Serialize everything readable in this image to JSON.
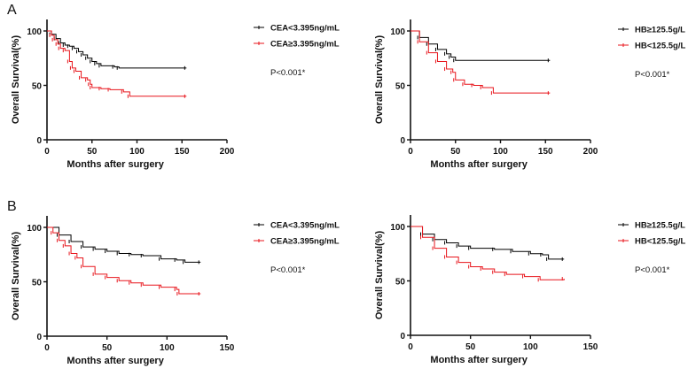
{
  "chart_data": [
    {
      "type": "line",
      "panel_label": "A",
      "xlabel": "Months after surgery",
      "ylabel": "Overall Survival(%)",
      "xlim": [
        0,
        200
      ],
      "ylim": [
        0,
        100
      ],
      "xticks": [
        "0",
        "50",
        "100",
        "150",
        "200"
      ],
      "yticks": [
        "0",
        "50",
        "100"
      ],
      "pvalue": "P<0.001*",
      "legend_position": "right",
      "series": [
        {
          "name": "CEA<3.395ng/mL",
          "color": "#000000",
          "x": [
            0,
            5,
            10,
            15,
            20,
            25,
            30,
            35,
            40,
            45,
            50,
            55,
            60,
            75,
            80,
            155
          ],
          "y": [
            100,
            97,
            93,
            89,
            87,
            86,
            84,
            81,
            78,
            75,
            72,
            70,
            68,
            67,
            66,
            66
          ]
        },
        {
          "name": "CEA≥3.395ng/mL",
          "color": "#e8141b",
          "x": [
            0,
            5,
            8,
            12,
            15,
            20,
            25,
            28,
            32,
            38,
            45,
            48,
            50,
            60,
            70,
            85,
            92,
            155
          ],
          "y": [
            100,
            96,
            92,
            88,
            84,
            82,
            72,
            66,
            63,
            57,
            55,
            51,
            48,
            47,
            46,
            44,
            40,
            40
          ]
        }
      ]
    },
    {
      "type": "line",
      "panel_label": "",
      "xlabel": "Months after surgery",
      "ylabel": "Overall Survival(%)",
      "xlim": [
        0,
        200
      ],
      "ylim": [
        0,
        100
      ],
      "xticks": [
        "0",
        "50",
        "100",
        "150",
        "200"
      ],
      "yticks": [
        "0",
        "50",
        "100"
      ],
      "pvalue": "P<0.001*",
      "legend_position": "right",
      "series": [
        {
          "name": "HB≥125.5g/L",
          "color": "#000000",
          "x": [
            0,
            10,
            20,
            30,
            40,
            45,
            50,
            155
          ],
          "y": [
            100,
            94,
            88,
            83,
            79,
            76,
            73,
            73
          ]
        },
        {
          "name": "HB<125.5g/L",
          "color": "#e8141b",
          "x": [
            0,
            10,
            20,
            30,
            40,
            47,
            50,
            60,
            70,
            80,
            92,
            155
          ],
          "y": [
            100,
            90,
            80,
            72,
            65,
            62,
            55,
            51,
            50,
            48,
            43,
            43
          ]
        }
      ]
    },
    {
      "type": "line",
      "panel_label": "B",
      "xlabel": "Months after surgery",
      "ylabel": "Overall Survival(%)",
      "xlim": [
        0,
        150
      ],
      "ylim": [
        0,
        100
      ],
      "xticks": [
        "0",
        "50",
        "100",
        "150"
      ],
      "yticks": [
        "0",
        "50",
        "100"
      ],
      "pvalue": "P<0.001*",
      "legend_position": "right",
      "series": [
        {
          "name": "CEA<3.395ng/mL",
          "color": "#000000",
          "x": [
            0,
            10,
            20,
            30,
            40,
            50,
            60,
            70,
            80,
            95,
            108,
            115,
            128
          ],
          "y": [
            100,
            93,
            87,
            82,
            80,
            78,
            76,
            75,
            74,
            71,
            70,
            68,
            68
          ]
        },
        {
          "name": "CEA≥3.395ng/mL",
          "color": "#e8141b",
          "x": [
            0,
            5,
            10,
            15,
            20,
            25,
            30,
            40,
            50,
            60,
            70,
            80,
            95,
            108,
            110,
            128
          ],
          "y": [
            100,
            95,
            88,
            83,
            76,
            72,
            64,
            57,
            54,
            51,
            49,
            47,
            45,
            43,
            39,
            39
          ]
        }
      ]
    },
    {
      "type": "line",
      "panel_label": "",
      "xlabel": "Months after surgery",
      "ylabel": "Overall Survival(%)",
      "xlim": [
        0,
        150
      ],
      "ylim": [
        0,
        100
      ],
      "xticks": [
        "0",
        "50",
        "100",
        "150"
      ],
      "yticks": [
        "0",
        "50",
        "100"
      ],
      "pvalue": "P<0.001*",
      "legend_position": "right",
      "series": [
        {
          "name": "HB≥125.5g/L",
          "color": "#000000",
          "x": [
            0,
            10,
            20,
            30,
            40,
            50,
            70,
            85,
            100,
            110,
            115,
            128
          ],
          "y": [
            100,
            93,
            88,
            85,
            82,
            80,
            79,
            77,
            75,
            74,
            70,
            70
          ]
        },
        {
          "name": "HB<125.5g/L",
          "color": "#e8141b",
          "x": [
            0,
            10,
            20,
            30,
            40,
            50,
            60,
            70,
            80,
            95,
            108,
            128
          ],
          "y": [
            100,
            90,
            80,
            72,
            67,
            63,
            61,
            58,
            56,
            54,
            51,
            52
          ]
        }
      ]
    }
  ]
}
